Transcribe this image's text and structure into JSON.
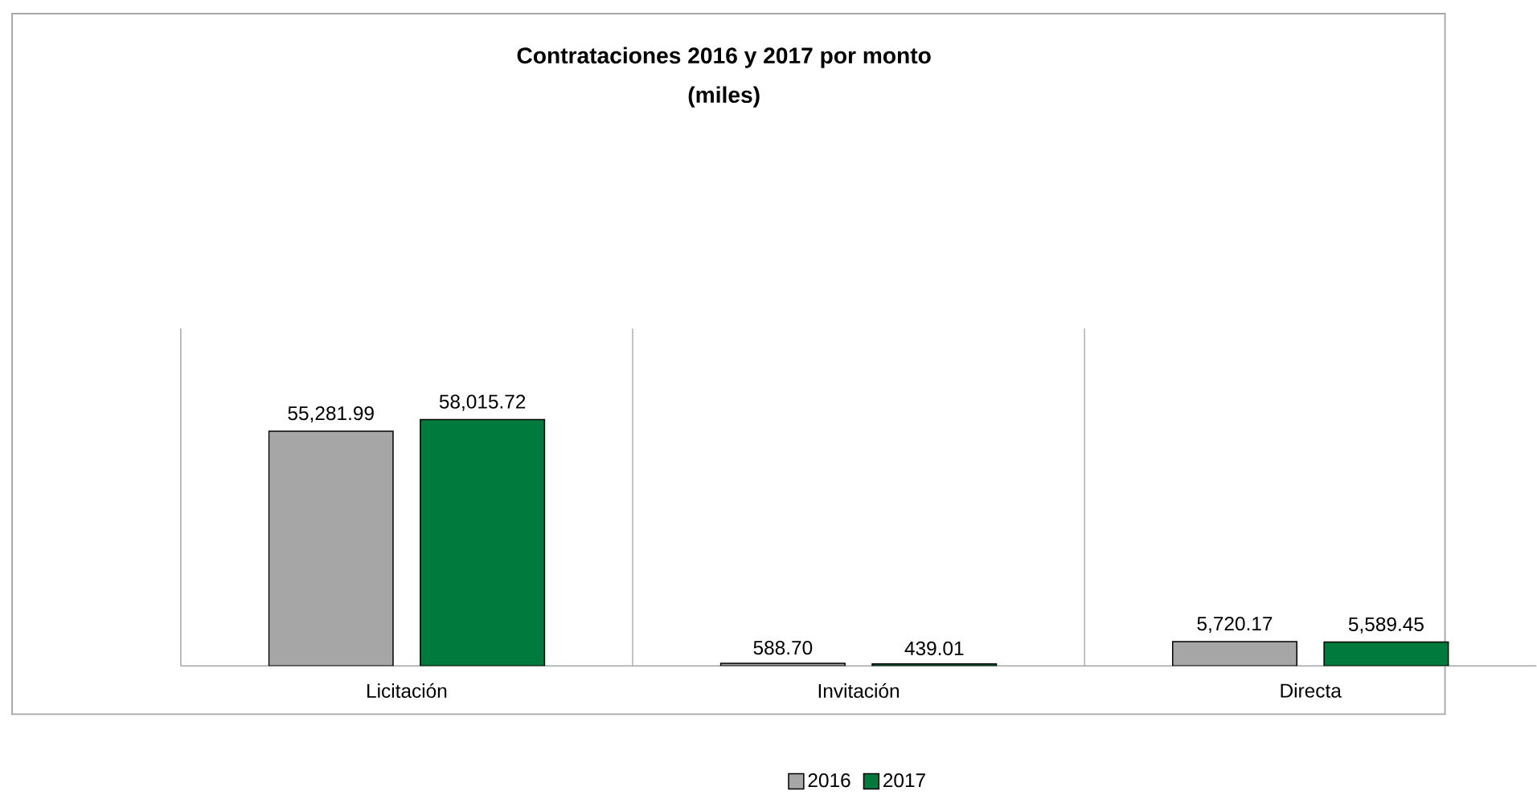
{
  "chart_data": {
    "type": "bar",
    "title": "Contrataciones 2016 y 2017 por monto",
    "subtitle": "(miles)",
    "categories": [
      "Licitación",
      "Invitación",
      "Directa"
    ],
    "series": [
      {
        "name": "2016",
        "color": "#a6a6a6",
        "values": [
          55281.99,
          588.7,
          5720.17
        ],
        "value_labels": [
          "55,281.99",
          "588.70",
          "5,720.17"
        ]
      },
      {
        "name": "2017",
        "color": "#007a3d",
        "values": [
          58015.72,
          439.01,
          5589.45
        ],
        "value_labels": [
          "58,015.72",
          "439.01",
          "5,589.45"
        ]
      }
    ],
    "grid": "x",
    "legend": "bottom"
  }
}
